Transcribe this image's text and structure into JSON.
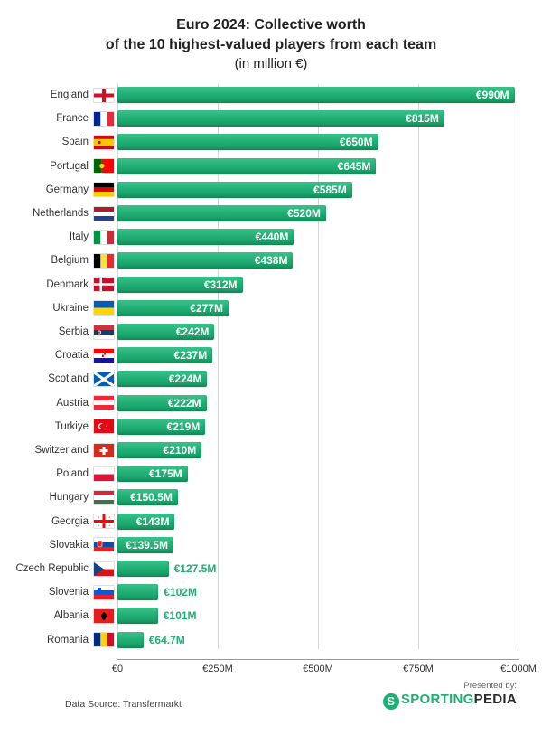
{
  "title_line1": "Euro 2024: Collective worth",
  "title_line2": "of the 10 highest-valued players from each team",
  "subtitle": "(in million €)",
  "title_fontsize": 16,
  "subtitle_fontsize": 15,
  "chart": {
    "type": "bar-horizontal",
    "xmin": 0,
    "xmax": 1000,
    "xtick_step": 250,
    "xtick_prefix": "€",
    "xtick_suffix": "M",
    "xtick_zero": "€0",
    "bar_color_top": "#3bc18a",
    "bar_color_mid": "#1fae74",
    "bar_color_bot": "#179a63",
    "grid_color": "#d6d6d6",
    "background_color": "#ffffff",
    "label_inside_threshold": 135,
    "row_height": 26.2,
    "rows": [
      {
        "country": "England",
        "value": 990,
        "label": "€990M",
        "flag": "england"
      },
      {
        "country": "France",
        "value": 815,
        "label": "€815M",
        "flag": "france"
      },
      {
        "country": "Spain",
        "value": 650,
        "label": "€650M",
        "flag": "spain"
      },
      {
        "country": "Portugal",
        "value": 645,
        "label": "€645M",
        "flag": "portugal"
      },
      {
        "country": "Germany",
        "value": 585,
        "label": "€585M",
        "flag": "germany"
      },
      {
        "country": "Netherlands",
        "value": 520,
        "label": "€520M",
        "flag": "netherlands"
      },
      {
        "country": "Italy",
        "value": 440,
        "label": "€440M",
        "flag": "italy"
      },
      {
        "country": "Belgium",
        "value": 438,
        "label": "€438M",
        "flag": "belgium"
      },
      {
        "country": "Denmark",
        "value": 312,
        "label": "€312M",
        "flag": "denmark"
      },
      {
        "country": "Ukraine",
        "value": 277,
        "label": "€277M",
        "flag": "ukraine"
      },
      {
        "country": "Serbia",
        "value": 242,
        "label": "€242M",
        "flag": "serbia"
      },
      {
        "country": "Croatia",
        "value": 237,
        "label": "€237M",
        "flag": "croatia"
      },
      {
        "country": "Scotland",
        "value": 224,
        "label": "€224M",
        "flag": "scotland"
      },
      {
        "country": "Austria",
        "value": 222,
        "label": "€222M",
        "flag": "austria"
      },
      {
        "country": "Turkiye",
        "value": 219,
        "label": "€219M",
        "flag": "turkiye"
      },
      {
        "country": "Switzerland",
        "value": 210,
        "label": "€210M",
        "flag": "switzerland"
      },
      {
        "country": "Poland",
        "value": 175,
        "label": "€175M",
        "flag": "poland"
      },
      {
        "country": "Hungary",
        "value": 150.5,
        "label": "€150.5M",
        "flag": "hungary"
      },
      {
        "country": "Georgia",
        "value": 143,
        "label": "€143M",
        "flag": "georgia"
      },
      {
        "country": "Slovakia",
        "value": 139.5,
        "label": "€139.5M",
        "flag": "slovakia"
      },
      {
        "country": "Czech Republic",
        "value": 127.5,
        "label": "€127.5M",
        "flag": "czech"
      },
      {
        "country": "Slovenia",
        "value": 102,
        "label": "€102M",
        "flag": "slovenia"
      },
      {
        "country": "Albania",
        "value": 101,
        "label": "€101M",
        "flag": "albania"
      },
      {
        "country": "Romania",
        "value": 64.7,
        "label": "€64.7M",
        "flag": "romania"
      }
    ]
  },
  "footer": {
    "source_label": "Data Source: Transfermarkt",
    "presented_by": "Presented by:",
    "logo_text1": "SPORTING",
    "logo_text2": "PEDIA",
    "logo_badge": "S",
    "logo_green": "#1fae74"
  }
}
